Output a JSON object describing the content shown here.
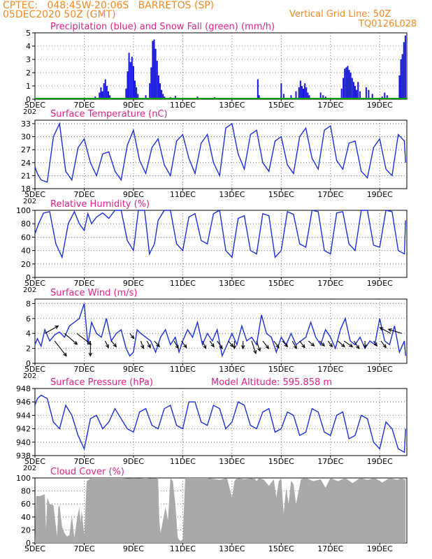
{
  "header": {
    "line1": "CPTEC:   048:45W-20:06S   BARRETOS (SP)",
    "line2": "05DEC2020 50Z (GMT)",
    "grid_note": "Vertical Grid Line: 50Z",
    "code": "TQ0126L028"
  },
  "colors": {
    "line": "#1c2fd6",
    "precip": "#1414dc",
    "snow": "#00a000",
    "cloud": "#a9a9a9",
    "title": "#e0218a",
    "header": "#f08a24"
  },
  "x_axis": {
    "range_days": [
      5,
      20.1
    ],
    "ticks": [
      {
        "day": 5,
        "label": "5DEC"
      },
      {
        "day": 7,
        "label": "7DEC"
      },
      {
        "day": 9,
        "label": "9DEC"
      },
      {
        "day": 11,
        "label": "11DEC"
      },
      {
        "day": 13,
        "label": "13DEC"
      },
      {
        "day": 15,
        "label": "15DEC"
      },
      {
        "day": 17,
        "label": "17DEC"
      },
      {
        "day": 19,
        "label": "19DEC"
      }
    ],
    "stub_label": "202"
  },
  "chart_data": [
    {
      "id": "precip",
      "type": "bar",
      "title": "Precipitation (blue) and Snow Fall (green) (mm/h)",
      "ylim": [
        0,
        5
      ],
      "yticks": [
        0,
        1,
        2,
        3,
        4,
        5
      ],
      "series": [
        {
          "name": "Precipitation",
          "x": [
            7.45,
            7.62,
            7.68,
            7.74,
            7.8,
            7.86,
            7.92,
            7.98,
            8.04,
            8.7,
            8.76,
            8.82,
            8.88,
            8.94,
            9.0,
            9.06,
            9.12,
            9.18,
            9.5,
            9.66,
            9.72,
            9.78,
            9.84,
            9.9,
            9.96,
            10.02,
            10.08,
            10.14,
            10.2,
            10.26,
            10.5,
            10.7,
            11.1,
            11.6,
            12.3,
            14.05,
            14.1,
            15.0,
            15.1,
            15.4,
            15.6,
            15.72,
            15.78,
            15.84,
            15.9,
            15.96,
            16.02,
            16.08,
            16.14,
            16.6,
            16.7,
            16.8,
            17.45,
            17.52,
            17.58,
            17.64,
            17.7,
            17.76,
            17.82,
            17.88,
            17.94,
            18.0,
            18.06,
            18.12,
            18.2,
            18.45,
            18.55,
            18.7,
            19.1,
            19.2,
            19.3,
            19.8,
            19.86,
            19.92,
            19.98,
            20.04
          ],
          "values": [
            0.2,
            0.5,
            0.9,
            0.6,
            1.2,
            1.5,
            1.0,
            0.6,
            0.3,
            0.8,
            2.1,
            3.5,
            2.8,
            3.2,
            2.5,
            1.4,
            0.9,
            0.4,
            0.3,
            1.2,
            2.4,
            4.4,
            4.5,
            3.8,
            2.9,
            1.8,
            1.2,
            0.7,
            0.4,
            0.2,
            0.15,
            0.25,
            0.1,
            0.2,
            0.15,
            1.5,
            0.3,
            1.2,
            0.4,
            0.3,
            0.6,
            0.9,
            1.4,
            1.0,
            0.8,
            1.2,
            0.9,
            0.5,
            0.3,
            0.5,
            0.3,
            0.2,
            0.8,
            1.6,
            2.3,
            2.4,
            2.5,
            2.2,
            2.0,
            1.6,
            1.3,
            1.0,
            0.7,
            1.3,
            0.6,
            0.9,
            0.7,
            0.4,
            0.2,
            0.5,
            0.3,
            1.8,
            3.0,
            3.4,
            4.3,
            4.8
          ]
        },
        {
          "name": "Snow Fall",
          "values": [
            0
          ]
        }
      ]
    },
    {
      "id": "temp",
      "type": "line",
      "title": "Surface Temperature (nC)",
      "ylim": [
        18,
        33.8
      ],
      "yticks": [
        18,
        21,
        24,
        27,
        30,
        33
      ],
      "x": [
        5.0,
        5.1,
        5.25,
        5.5,
        5.75,
        6.0,
        6.25,
        6.5,
        6.75,
        7.0,
        7.25,
        7.5,
        7.75,
        8.0,
        8.25,
        8.5,
        8.75,
        9.0,
        9.25,
        9.5,
        9.75,
        10.0,
        10.25,
        10.5,
        10.75,
        11.0,
        11.25,
        11.5,
        11.75,
        12.0,
        12.25,
        12.5,
        12.75,
        13.0,
        13.25,
        13.5,
        13.75,
        14.0,
        14.25,
        14.5,
        14.75,
        15.0,
        15.25,
        15.5,
        15.75,
        16.0,
        16.25,
        16.5,
        16.75,
        17.0,
        17.25,
        17.5,
        17.75,
        18.0,
        18.25,
        18.5,
        18.75,
        19.0,
        19.25,
        19.5,
        19.75,
        20.0,
        20.05
      ],
      "values": [
        23.0,
        21.5,
        20.0,
        19.5,
        30.0,
        33.0,
        22.0,
        20.0,
        27.5,
        29.5,
        24.0,
        21.0,
        26.0,
        26.5,
        22.0,
        20.0,
        28.0,
        31.5,
        24.5,
        21.5,
        27.5,
        29.5,
        23.5,
        21.0,
        29.0,
        30.5,
        25.0,
        21.5,
        28.5,
        30.5,
        24.0,
        21.0,
        32.0,
        33.0,
        26.0,
        22.5,
        30.5,
        31.5,
        24.0,
        22.0,
        29.0,
        30.0,
        23.5,
        21.5,
        30.0,
        32.0,
        25.0,
        22.5,
        31.5,
        32.5,
        24.5,
        22.5,
        28.5,
        29.0,
        22.0,
        20.5,
        27.5,
        29.5,
        22.5,
        21.0,
        30.5,
        29.0,
        24.0
      ]
    },
    {
      "id": "rh",
      "type": "line",
      "title": "Relative Humidity (%)",
      "ylim": [
        0,
        100
      ],
      "yticks": [
        0,
        20,
        40,
        60,
        80,
        100
      ],
      "x": [
        5.0,
        5.15,
        5.35,
        5.6,
        5.85,
        6.1,
        6.35,
        6.6,
        6.8,
        7.0,
        7.15,
        7.3,
        7.5,
        7.75,
        8.0,
        8.25,
        8.5,
        8.75,
        9.0,
        9.2,
        9.45,
        9.65,
        9.85,
        10.0,
        10.25,
        10.5,
        10.75,
        11.0,
        11.25,
        11.5,
        11.75,
        12.0,
        12.25,
        12.5,
        12.75,
        13.0,
        13.25,
        13.5,
        13.75,
        14.0,
        14.25,
        14.5,
        14.75,
        15.0,
        15.25,
        15.5,
        15.75,
        16.0,
        16.25,
        16.5,
        16.75,
        17.0,
        17.25,
        17.5,
        17.75,
        18.0,
        18.25,
        18.5,
        18.75,
        19.0,
        19.25,
        19.5,
        19.75,
        20.0,
        20.05
      ],
      "values": [
        65,
        80,
        96,
        98,
        50,
        30,
        80,
        98,
        80,
        70,
        95,
        80,
        90,
        96,
        88,
        100,
        100,
        55,
        40,
        100,
        100,
        35,
        50,
        85,
        100,
        100,
        50,
        40,
        90,
        95,
        55,
        50,
        95,
        100,
        40,
        30,
        88,
        92,
        40,
        35,
        95,
        92,
        30,
        40,
        98,
        94,
        50,
        45,
        100,
        98,
        40,
        35,
        96,
        98,
        50,
        40,
        100,
        100,
        48,
        45,
        100,
        98,
        40,
        35,
        85
      ]
    },
    {
      "id": "wind",
      "type": "line",
      "title": "Surface Wind (m/s)",
      "ylim": [
        0,
        8.6
      ],
      "yticks": [
        0,
        2,
        4,
        6,
        8
      ],
      "x": [
        5.0,
        5.1,
        5.25,
        5.4,
        5.6,
        5.8,
        6.0,
        6.2,
        6.4,
        6.6,
        6.8,
        7.0,
        7.15,
        7.3,
        7.5,
        7.7,
        7.9,
        8.1,
        8.3,
        8.5,
        8.7,
        8.85,
        9.0,
        9.15,
        9.3,
        9.5,
        9.7,
        9.9,
        10.1,
        10.3,
        10.5,
        10.7,
        10.85,
        11.0,
        11.2,
        11.4,
        11.6,
        11.8,
        12.0,
        12.2,
        12.4,
        12.6,
        12.8,
        13.0,
        13.2,
        13.4,
        13.6,
        13.8,
        14.0,
        14.2,
        14.4,
        14.6,
        14.8,
        15.0,
        15.2,
        15.4,
        15.6,
        15.8,
        16.0,
        16.2,
        16.4,
        16.6,
        16.8,
        17.0,
        17.2,
        17.4,
        17.6,
        17.8,
        18.0,
        18.2,
        18.4,
        18.6,
        18.8,
        19.0,
        19.2,
        19.4,
        19.6,
        19.8,
        20.0,
        20.05
      ],
      "values": [
        2.5,
        3.3,
        2.3,
        4.5,
        3.0,
        3.8,
        4.2,
        3.5,
        5.0,
        5.5,
        6.0,
        8.0,
        2.5,
        5.5,
        4.0,
        3.5,
        6.0,
        3.0,
        4.0,
        4.5,
        2.0,
        1.0,
        1.5,
        4.5,
        4.0,
        3.5,
        3.0,
        1.5,
        3.5,
        4.5,
        2.5,
        3.5,
        1.5,
        3.0,
        4.5,
        3.5,
        5.5,
        2.5,
        4.0,
        3.0,
        4.5,
        1.0,
        2.5,
        4.0,
        2.5,
        5.0,
        3.0,
        3.5,
        2.5,
        6.5,
        4.0,
        3.5,
        1.5,
        3.5,
        2.5,
        4.0,
        2.5,
        3.0,
        3.5,
        5.5,
        3.5,
        2.5,
        4.5,
        3.5,
        2.0,
        4.5,
        6.0,
        3.0,
        2.5,
        3.5,
        2.0,
        3.0,
        2.5,
        6.0,
        3.0,
        2.5,
        5.0,
        1.5,
        3.0,
        1.0
      ]
    },
    {
      "id": "pres",
      "type": "line",
      "title": "Surface Pressure (hPa)",
      "annotation": "Model Altitude: 595.858 m",
      "ylim": [
        938,
        948
      ],
      "yticks": [
        938,
        940,
        942,
        944,
        946,
        948
      ],
      "x": [
        5.0,
        5.1,
        5.25,
        5.5,
        5.75,
        6.0,
        6.25,
        6.5,
        6.75,
        7.0,
        7.25,
        7.5,
        7.75,
        8.0,
        8.25,
        8.5,
        8.75,
        9.0,
        9.25,
        9.5,
        9.75,
        10.0,
        10.25,
        10.5,
        10.75,
        11.0,
        11.25,
        11.5,
        11.75,
        12.0,
        12.25,
        12.5,
        12.75,
        13.0,
        13.25,
        13.5,
        13.75,
        14.0,
        14.25,
        14.5,
        14.75,
        15.0,
        15.25,
        15.5,
        15.75,
        16.0,
        16.25,
        16.5,
        16.75,
        17.0,
        17.25,
        17.5,
        17.75,
        18.0,
        18.25,
        18.5,
        18.75,
        19.0,
        19.25,
        19.5,
        19.75,
        20.0,
        20.05
      ],
      "values": [
        945.5,
        946.5,
        947.0,
        946.5,
        943.0,
        942.0,
        945.5,
        944.0,
        941.0,
        939.0,
        943.5,
        944.0,
        942.0,
        943.0,
        945.0,
        943.5,
        942.0,
        941.5,
        944.5,
        945.0,
        942.5,
        942.0,
        945.0,
        945.5,
        942.5,
        942.0,
        946.0,
        946.0,
        943.0,
        942.5,
        945.5,
        945.0,
        942.0,
        943.0,
        946.0,
        945.5,
        942.5,
        942.0,
        944.5,
        945.0,
        941.5,
        942.0,
        944.5,
        944.0,
        941.0,
        941.5,
        945.0,
        944.5,
        941.5,
        941.0,
        944.0,
        944.5,
        940.5,
        941.0,
        944.0,
        943.5,
        940.0,
        939.0,
        943.0,
        942.0,
        939.0,
        938.5,
        942.0
      ]
    },
    {
      "id": "cloud",
      "type": "area",
      "title": "Cloud Cover (%)",
      "ylim": [
        0,
        100
      ],
      "yticks": [
        0,
        20,
        40,
        60,
        80,
        100
      ],
      "x": [
        5.0,
        5.05,
        5.2,
        5.4,
        5.45,
        5.5,
        5.6,
        5.75,
        5.9,
        5.95,
        6.0,
        6.1,
        6.2,
        6.3,
        6.4,
        6.5,
        6.6,
        6.7,
        6.8,
        6.85,
        6.9,
        7.0,
        7.1,
        7.3,
        7.6,
        8.0,
        8.5,
        9.0,
        9.5,
        9.8,
        10.0,
        10.05,
        10.1,
        10.3,
        10.4,
        10.5,
        10.6,
        10.7,
        10.8,
        10.9,
        11.0,
        11.1,
        11.5,
        12.0,
        12.5,
        12.8,
        12.9,
        13.0,
        13.1,
        13.2,
        13.5,
        13.9,
        14.0,
        14.1,
        14.3,
        14.5,
        14.7,
        14.8,
        14.9,
        15.0,
        15.1,
        15.2,
        15.3,
        15.4,
        15.5,
        15.6,
        15.8,
        16.0,
        16.3,
        16.6,
        16.8,
        17.0,
        17.3,
        17.6,
        17.9,
        18.2,
        18.5,
        18.8,
        19.1,
        19.4,
        19.7,
        19.9,
        20.0,
        20.05
      ],
      "values": [
        0,
        72,
        72,
        75,
        20,
        70,
        60,
        58,
        10,
        55,
        58,
        25,
        15,
        10,
        12,
        42,
        8,
        35,
        55,
        32,
        50,
        12,
        95,
        100,
        100,
        100,
        100,
        99,
        100,
        99,
        100,
        35,
        15,
        55,
        35,
        100,
        95,
        60,
        8,
        3,
        5,
        100,
        100,
        100,
        97,
        100,
        85,
        70,
        95,
        100,
        98,
        100,
        95,
        100,
        97,
        88,
        98,
        70,
        95,
        100,
        45,
        85,
        60,
        96,
        90,
        60,
        98,
        100,
        95,
        98,
        85,
        100,
        95,
        100,
        92,
        100,
        97,
        100,
        93,
        100,
        97,
        100,
        97,
        100
      ]
    }
  ],
  "wind_vectors": {
    "name": "Wind direction",
    "x": [
      5.4,
      5.8,
      6.2,
      6.7,
      7.25,
      7.85,
      8.1,
      8.85,
      9.3,
      9.55,
      9.85,
      10.65,
      10.95,
      11.8,
      12.1,
      12.4,
      12.85,
      13.1,
      13.45,
      13.8,
      14.0,
      14.25,
      14.7,
      15.05,
      15.45,
      15.75,
      16.1,
      16.55,
      16.9,
      17.3,
      17.55,
      17.95,
      18.4,
      18.75,
      19.05,
      19.45,
      19.9
    ],
    "base_speed": [
      4,
      3,
      4,
      4,
      3,
      3,
      3,
      4,
      3,
      3,
      3,
      3,
      3,
      3,
      3,
      3,
      3,
      3,
      3,
      3,
      3,
      3,
      3,
      3,
      3,
      3,
      3,
      3,
      3,
      3,
      3,
      3,
      3,
      3,
      3,
      4,
      4
    ],
    "u": [
      1.6,
      1.4,
      1.5,
      1.7,
      0.0,
      0.4,
      0.6,
      0.5,
      0.3,
      0.4,
      0.6,
      0.5,
      0.6,
      0.4,
      0.5,
      0.6,
      0.6,
      0.0,
      0.0,
      0.5,
      0.4,
      0.7,
      0.6,
      0.6,
      0.5,
      0.6,
      0.7,
      0.6,
      0.5,
      0.8,
      1.0,
      0.6,
      0.0,
      0.4,
      0.6,
      -1.3,
      -1.6
    ],
    "v": [
      0.9,
      -1.8,
      -1.3,
      -1.3,
      -1.8,
      -0.8,
      -0.7,
      -0.6,
      -0.9,
      -0.8,
      -0.7,
      -0.9,
      -0.8,
      -0.9,
      -0.7,
      -0.9,
      -0.7,
      -0.9,
      -0.9,
      -1.5,
      -1.2,
      -0.9,
      -0.8,
      -0.7,
      -0.9,
      -0.8,
      -0.6,
      -0.6,
      -0.7,
      -0.7,
      -0.7,
      -0.9,
      -0.8,
      -0.6,
      -0.8,
      0.7,
      0.5
    ]
  }
}
